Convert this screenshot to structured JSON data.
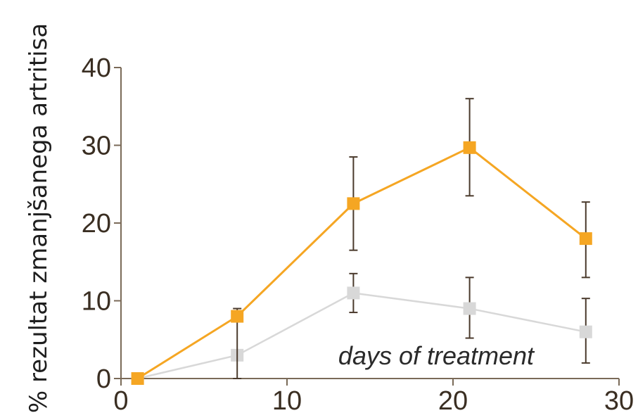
{
  "chart_data": {
    "type": "line",
    "ylabel": "% rezultat zmanjšanega artritisa",
    "xlabel": "",
    "annotation": "days of treatment",
    "xlim": [
      0,
      30
    ],
    "ylim": [
      0,
      40
    ],
    "xticks": [
      0,
      10,
      20,
      30
    ],
    "yticks": [
      0,
      10,
      20,
      30,
      40
    ],
    "grid": false,
    "series": [
      {
        "color": "#f5a623",
        "x": [
          1,
          7,
          14,
          21,
          28
        ],
        "y": [
          0,
          8,
          22.5,
          29.7,
          18
        ],
        "err_low": [
          0,
          0,
          16.5,
          23.5,
          13
        ],
        "err_high": [
          0,
          9,
          28.5,
          36,
          22.7
        ]
      },
      {
        "color": "#d8d8d8",
        "x": [
          1,
          7,
          14,
          21,
          28
        ],
        "y": [
          0,
          3,
          11,
          9,
          6
        ],
        "err_low": [
          0,
          0,
          8.5,
          5.2,
          2
        ],
        "err_high": [
          0,
          0,
          13.5,
          13,
          10.3
        ]
      }
    ]
  }
}
